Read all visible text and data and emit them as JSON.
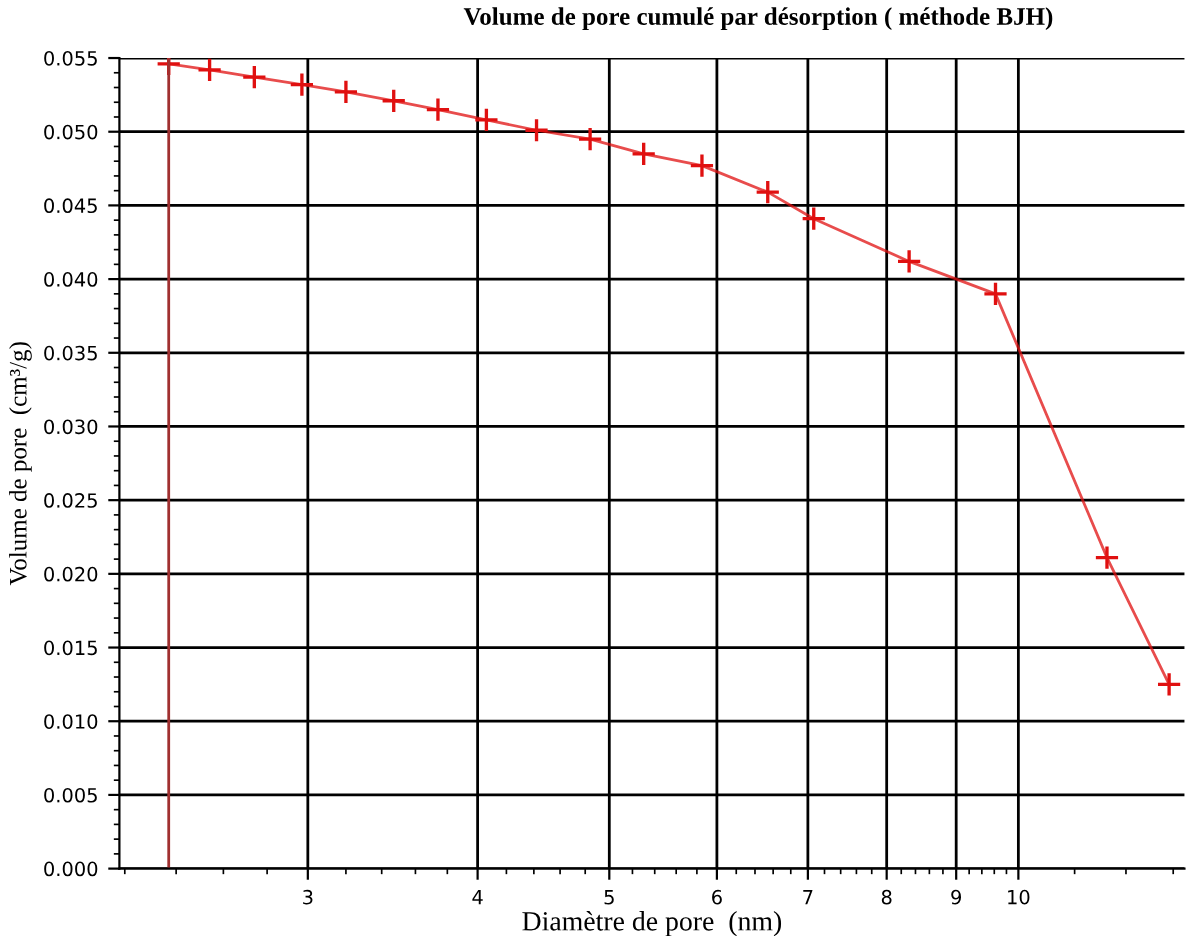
{
  "chart_data": {
    "type": "line",
    "title": "Volume de pore cumulé par désorption ( méthode BJH)",
    "xlabel": "Diamètre de pore  (nm)",
    "ylabel": "Volume de pore  (cm³/g)",
    "x": [
      2.37,
      2.54,
      2.74,
      2.97,
      3.2,
      3.47,
      3.74,
      4.06,
      4.42,
      4.84,
      5.3,
      5.85,
      6.54,
      7.07,
      8.31,
      9.62,
      11.62,
      12.91
    ],
    "series": [
      {
        "color": "#e01010",
        "values": [
          0.0546,
          0.0542,
          0.0537,
          0.0532,
          0.0527,
          0.0521,
          0.0515,
          0.0508,
          0.0501,
          0.0495,
          0.0485,
          0.0477,
          0.0459,
          0.0441,
          0.0412,
          0.039,
          0.0211,
          0.0125
        ]
      }
    ],
    "log": "x",
    "xlim": [
      2.18,
      13.25
    ],
    "xticks": [
      3,
      4,
      5,
      6,
      7,
      8,
      9,
      10
    ],
    "ylim": [
      0,
      0.055
    ],
    "yticks": [
      {
        "value": 0,
        "label": "0.000"
      },
      {
        "value": 0.005,
        "label": "0.005"
      },
      {
        "value": 0.01,
        "label": "0.010"
      },
      {
        "value": 0.015,
        "label": "0.015"
      },
      {
        "value": 0.02,
        "label": "0.020"
      },
      {
        "value": 0.025,
        "label": "0.025"
      },
      {
        "value": 0.03,
        "label": "0.030"
      },
      {
        "value": 0.035,
        "label": "0.035"
      },
      {
        "value": 0.04,
        "label": "0.040"
      },
      {
        "value": 0.045,
        "label": "0.045"
      },
      {
        "value": 0.05,
        "label": "0.050"
      },
      {
        "value": 0.055,
        "label": "0.055"
      }
    ],
    "ref_lines": [
      {
        "axis": "x",
        "value": 2.37,
        "color": "#a03030"
      }
    ],
    "grid": true,
    "marker": "cross",
    "line_style": "solid",
    "legend": false
  }
}
